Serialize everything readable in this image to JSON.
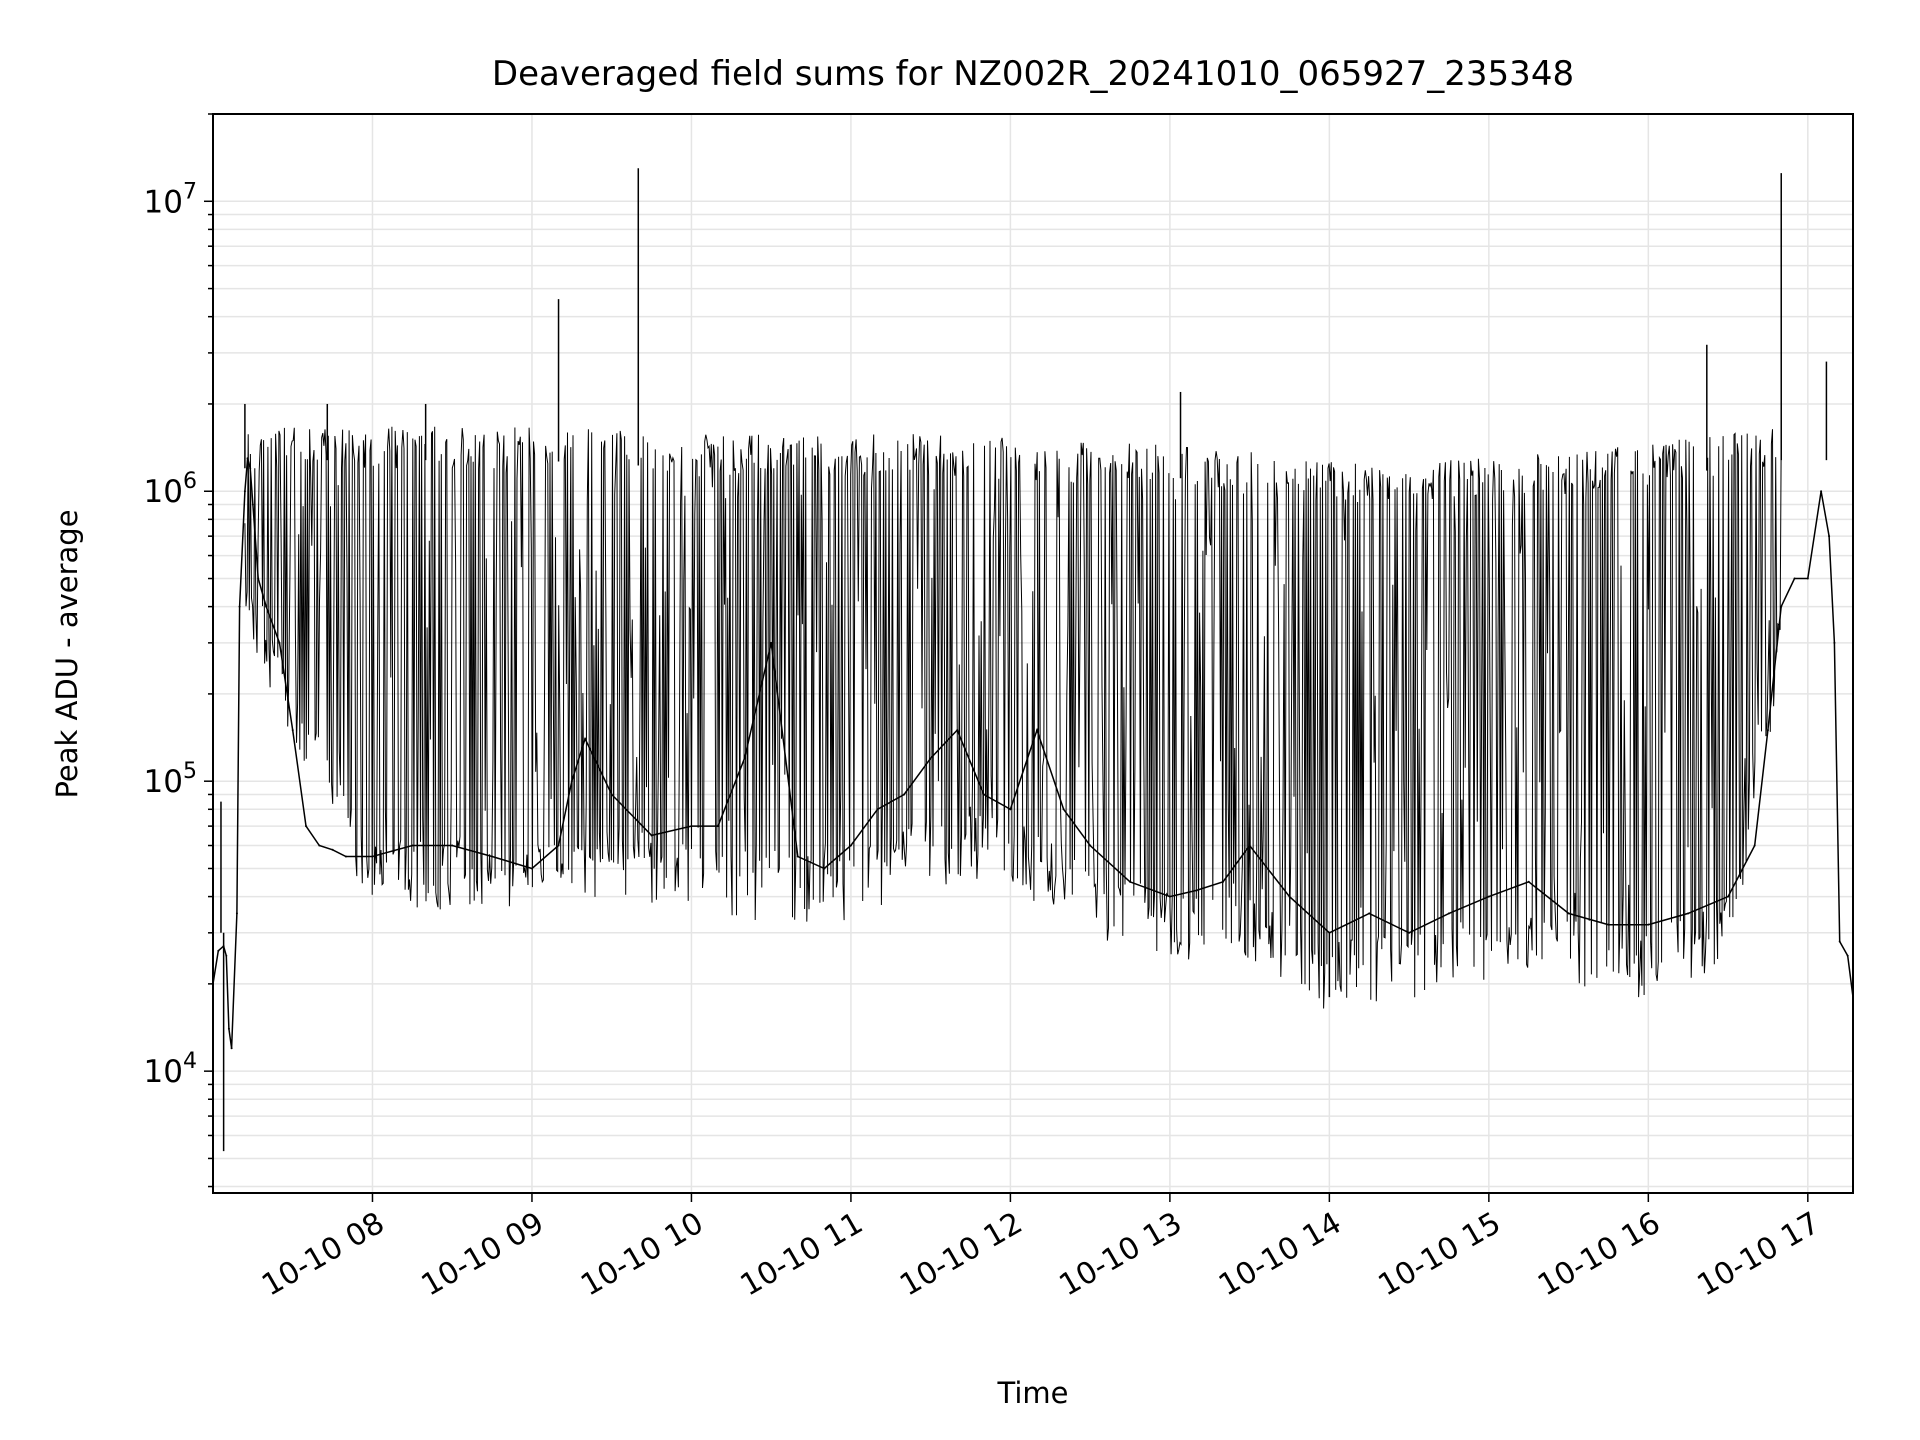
{
  "chart_data": {
    "type": "line",
    "title": "Deaveraged field sums for NZ002R_20241010_065927_235348",
    "xlabel": "Time",
    "ylabel": "Peak ADU - average",
    "yscale": "log",
    "ylim": [
      3800,
      20000000
    ],
    "xlim": [
      "2024-10-10 07:00",
      "2024-10-10 17:17"
    ],
    "x_ticks": [
      "2024-10-10 08:00",
      "2024-10-10 09:00",
      "2024-10-10 10:00",
      "2024-10-10 11:00",
      "2024-10-10 12:00",
      "2024-10-10 13:00",
      "2024-10-10 14:00",
      "2024-10-10 15:00",
      "2024-10-10 16:00",
      "2024-10-10 17:00"
    ],
    "x_tick_labels": [
      "10-10 08",
      "10-10 09",
      "10-10 10",
      "10-10 11",
      "10-10 12",
      "10-10 13",
      "10-10 14",
      "10-10 15",
      "10-10 16",
      "10-10 17"
    ],
    "y_ticks": [
      {
        "base": "10",
        "exp": "4",
        "value": 10000
      },
      {
        "base": "10",
        "exp": "5",
        "value": 100000
      },
      {
        "base": "10",
        "exp": "6",
        "value": 1000000
      },
      {
        "base": "10",
        "exp": "7",
        "value": 10000000
      }
    ],
    "grid": true,
    "line_color": "#000000",
    "grid_color": "#e5e5e5",
    "series": [
      {
        "x": [
          "2024-10-10 07:00",
          "2024-10-10 07:02",
          "2024-10-10 07:04",
          "2024-10-10 07:05",
          "2024-10-10 07:06",
          "2024-10-10 07:07",
          "2024-10-10 07:09",
          "2024-10-10 07:10",
          "2024-10-10 07:12",
          "2024-10-10 07:13",
          "2024-10-10 07:14",
          "2024-10-10 07:15",
          "2024-10-10 07:17",
          "2024-10-10 07:20",
          "2024-10-10 07:25",
          "2024-10-10 07:30",
          "2024-10-10 07:35",
          "2024-10-10 07:40",
          "2024-10-10 07:45",
          "2024-10-10 07:50",
          "2024-10-10 08:00",
          "2024-10-10 08:15",
          "2024-10-10 08:30",
          "2024-10-10 08:45",
          "2024-10-10 09:00",
          "2024-10-10 09:10",
          "2024-10-10 09:15",
          "2024-10-10 09:20",
          "2024-10-10 09:30",
          "2024-10-10 09:45",
          "2024-10-10 10:00",
          "2024-10-10 10:10",
          "2024-10-10 10:20",
          "2024-10-10 10:30",
          "2024-10-10 10:40",
          "2024-10-10 10:50",
          "2024-10-10 11:00",
          "2024-10-10 11:10",
          "2024-10-10 11:20",
          "2024-10-10 11:30",
          "2024-10-10 11:40",
          "2024-10-10 11:50",
          "2024-10-10 12:00",
          "2024-10-10 12:10",
          "2024-10-10 12:20",
          "2024-10-10 12:30",
          "2024-10-10 12:45",
          "2024-10-10 13:00",
          "2024-10-10 13:10",
          "2024-10-10 13:20",
          "2024-10-10 13:30",
          "2024-10-10 13:45",
          "2024-10-10 14:00",
          "2024-10-10 14:15",
          "2024-10-10 14:30",
          "2024-10-10 14:45",
          "2024-10-10 15:00",
          "2024-10-10 15:15",
          "2024-10-10 15:30",
          "2024-10-10 15:45",
          "2024-10-10 16:00",
          "2024-10-10 16:15",
          "2024-10-10 16:30",
          "2024-10-10 16:40",
          "2024-10-10 16:45",
          "2024-10-10 16:50",
          "2024-10-10 16:55",
          "2024-10-10 17:00",
          "2024-10-10 17:05",
          "2024-10-10 17:08",
          "2024-10-10 17:10",
          "2024-10-10 17:12",
          "2024-10-10 17:15",
          "2024-10-10 17:17"
        ],
        "y": [
          20000,
          26000,
          27000,
          25000,
          14000,
          12000,
          35000,
          400000,
          1000000,
          1300000,
          1200000,
          900000,
          500000,
          400000,
          300000,
          150000,
          70000,
          60000,
          58000,
          55000,
          55000,
          60000,
          60000,
          55000,
          50000,
          60000,
          100000,
          140000,
          90000,
          65000,
          70000,
          70000,
          120000,
          300000,
          55000,
          50000,
          60000,
          80000,
          90000,
          120000,
          150000,
          90000,
          80000,
          150000,
          80000,
          60000,
          45000,
          40000,
          42000,
          45000,
          60000,
          40000,
          30000,
          35000,
          30000,
          35000,
          40000,
          45000,
          35000,
          32000,
          32000,
          35000,
          40000,
          60000,
          150000,
          400000,
          500000,
          500000,
          1000000,
          700000,
          300000,
          28000,
          25000,
          18000
        ]
      }
    ],
    "envelope": {
      "x": [
        "2024-10-10 07:12",
        "2024-10-10 07:30",
        "2024-10-10 08:00",
        "2024-10-10 08:30",
        "2024-10-10 09:00",
        "2024-10-10 09:30",
        "2024-10-10 10:00",
        "2024-10-10 10:30",
        "2024-10-10 11:00",
        "2024-10-10 11:30",
        "2024-10-10 12:00",
        "2024-10-10 12:30",
        "2024-10-10 13:00",
        "2024-10-10 13:30",
        "2024-10-10 14:00",
        "2024-10-10 14:30",
        "2024-10-10 15:00",
        "2024-10-10 15:30",
        "2024-10-10 16:00",
        "2024-10-10 16:30",
        "2024-10-10 16:50"
      ],
      "upper": [
        1500000,
        1600000,
        1600000,
        1600000,
        1600000,
        1550000,
        1500000,
        1500000,
        1500000,
        1500000,
        1450000,
        1400000,
        1400000,
        1300000,
        1200000,
        1200000,
        1250000,
        1300000,
        1400000,
        1500000,
        1600000
      ],
      "lower": [
        400000,
        150000,
        45000,
        45000,
        42000,
        50000,
        45000,
        40000,
        40000,
        55000,
        55000,
        35000,
        30000,
        28000,
        20000,
        22000,
        25000,
        25000,
        22000,
        28000,
        300000
      ]
    },
    "spikes": [
      {
        "x": "2024-10-10 07:03",
        "y": 85000
      },
      {
        "x": "2024-10-10 07:04",
        "y": 5300
      },
      {
        "x": "2024-10-10 07:12",
        "y": 2000000
      },
      {
        "x": "2024-10-10 07:43",
        "y": 2000000
      },
      {
        "x": "2024-10-10 08:20",
        "y": 2000000
      },
      {
        "x": "2024-10-10 09:10",
        "y": 4600000
      },
      {
        "x": "2024-10-10 09:40",
        "y": 13000000
      },
      {
        "x": "2024-10-10 13:04",
        "y": 2200000
      },
      {
        "x": "2024-10-10 14:00",
        "y": 18000
      },
      {
        "x": "2024-10-10 16:22",
        "y": 3200000
      },
      {
        "x": "2024-10-10 16:50",
        "y": 12500000
      },
      {
        "x": "2024-10-10 17:07",
        "y": 2800000
      }
    ]
  }
}
